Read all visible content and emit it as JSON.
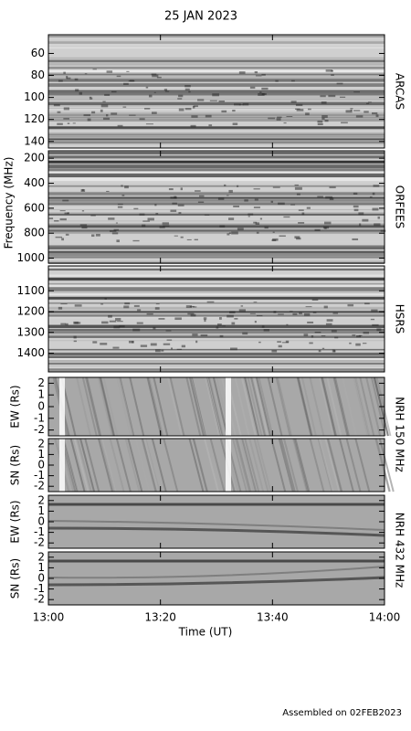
{
  "title": "25 JAN 2023",
  "footer": "Assembled on 02FEB2023",
  "frequency_label": "Frequency (MHz)",
  "x_axis": {
    "label": "Time (UT)",
    "xlim": [
      "13:00",
      "14:00"
    ],
    "xticks": [
      "13:00",
      "13:20",
      "13:40",
      "14:00"
    ]
  },
  "panels": [
    {
      "side_label": "ARCAS",
      "inverted": true,
      "ylim": [
        43,
        146
      ],
      "yticks": [
        60,
        80,
        100,
        120,
        140
      ]
    },
    {
      "side_label": "ORFEES",
      "inverted": true,
      "ylim": [
        140,
        1040
      ],
      "yticks": [
        200,
        400,
        600,
        800,
        1000
      ]
    },
    {
      "side_label": "HSRS",
      "inverted": true,
      "ylim": [
        980,
        1490
      ],
      "yticks": [
        1100,
        1200,
        1300,
        1400
      ]
    },
    {
      "ylabel": "EW (Rs)",
      "ylim": [
        -2.5,
        2.5
      ],
      "yticks": [
        -2,
        -1,
        0,
        1,
        2
      ]
    },
    {
      "ylabel": "SN (Rs)",
      "ylim": [
        -2.5,
        2.5
      ],
      "yticks": [
        -2,
        -1,
        0,
        1,
        2
      ]
    },
    {
      "ylabel": "EW (Rs)",
      "ylim": [
        -2.5,
        2.5
      ],
      "yticks": [
        -2,
        -1,
        0,
        1,
        2
      ]
    },
    {
      "ylabel": "SN (Rs)",
      "ylim": [
        -2.5,
        2.5
      ],
      "yticks": [
        -2,
        -1,
        0,
        1,
        2
      ]
    }
  ],
  "instrument_labels": [
    "NRH 150 MHz",
    "NRH 432 MHz"
  ]
}
